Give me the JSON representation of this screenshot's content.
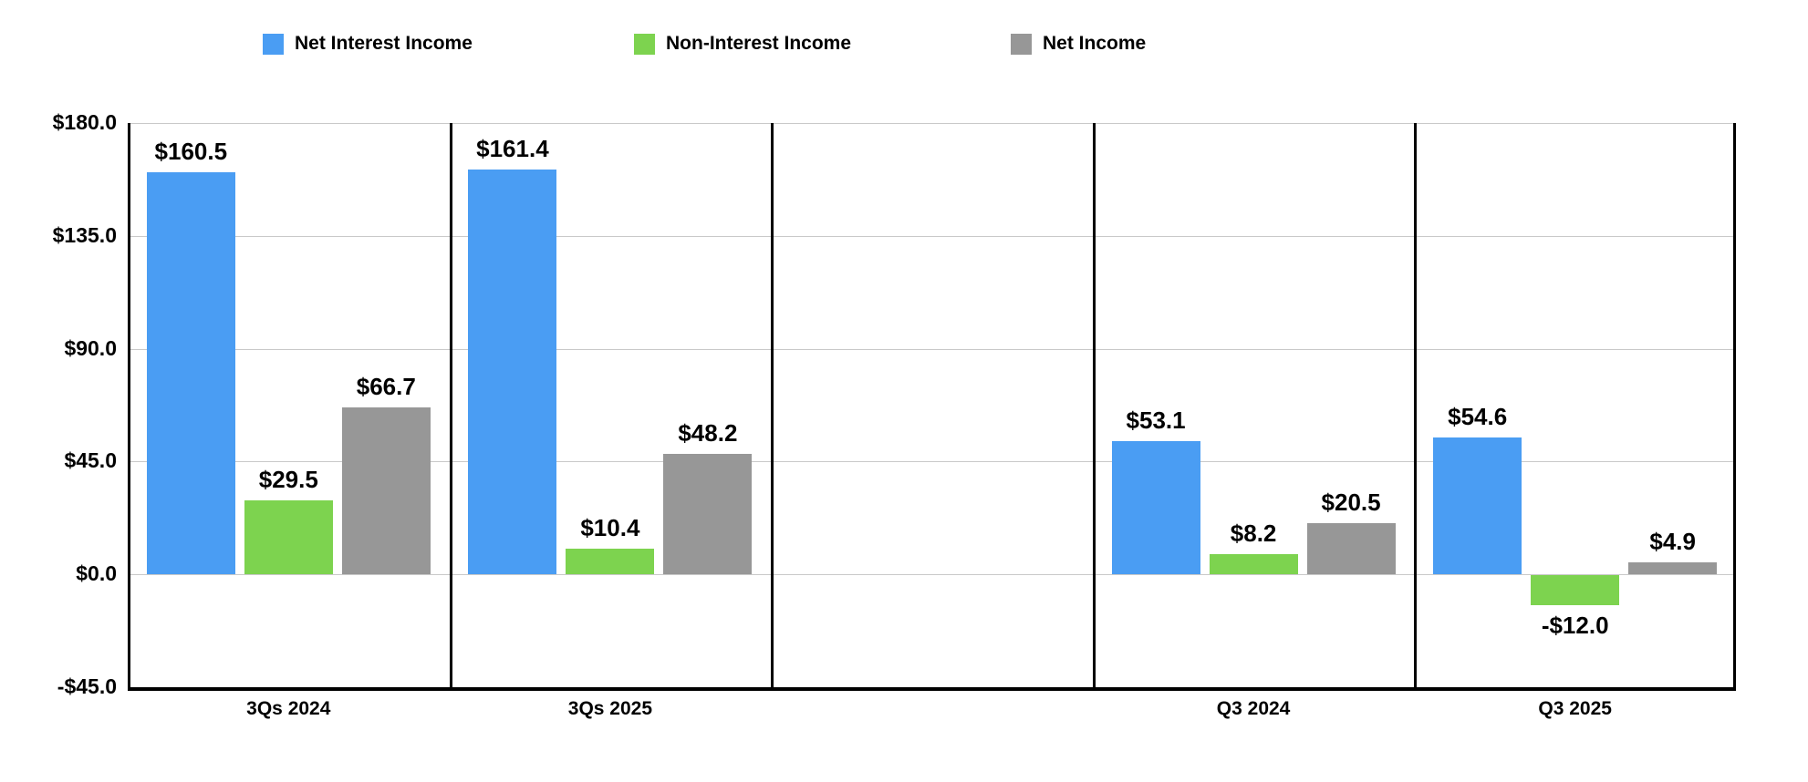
{
  "colors": {
    "net_interest_income": "#4A9DF3",
    "non_interest_income": "#7DD34F",
    "net_income": "#979797",
    "gridline": "#C9C9C9",
    "axis_line": "#000000",
    "label_text": "#000000",
    "background": "#FFFFFF"
  },
  "legend": {
    "position": "top",
    "items": [
      {
        "label": "Net Interest Income",
        "color": "#4A9DF3"
      },
      {
        "label": "Non-Interest Income",
        "color": "#7DD34F"
      },
      {
        "label": "Net Income",
        "color": "#979797"
      }
    ]
  },
  "chart_data": {
    "type": "bar",
    "title": "",
    "xlabel": "",
    "ylabel": "",
    "categories": [
      "3Qs 2024",
      "3Qs 2025",
      "",
      "Q3 2024",
      "Q3 2025"
    ],
    "series": [
      {
        "name": "Net Interest Income",
        "color": "#4A9DF3",
        "values": [
          160.5,
          161.4,
          null,
          53.1,
          54.6
        ],
        "labels": [
          "$160.5",
          "$161.4",
          null,
          "$53.1",
          "$54.6"
        ]
      },
      {
        "name": "Non-Interest Income",
        "color": "#7DD34F",
        "values": [
          29.5,
          10.4,
          null,
          8.2,
          -12.0
        ],
        "labels": [
          "$29.5",
          "$10.4",
          null,
          "$8.2",
          "-$12.0"
        ]
      },
      {
        "name": "Net Income",
        "color": "#979797",
        "values": [
          66.7,
          48.2,
          null,
          20.5,
          4.9
        ],
        "labels": [
          "$66.7",
          "$48.2",
          null,
          "$20.5",
          "$4.9"
        ]
      }
    ],
    "ylim": [
      -45,
      180
    ],
    "yticks": [
      180,
      135,
      90,
      45,
      0,
      -45
    ],
    "ytick_labels": [
      "$180.0",
      "$135.0",
      "$90.0",
      "$45.0",
      "$0.0",
      "-$45.0"
    ],
    "grid": true,
    "legend_position": "top",
    "value_prefix": "$"
  }
}
